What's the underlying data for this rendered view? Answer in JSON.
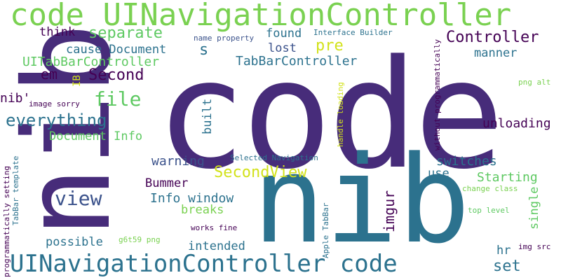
{
  "palette": {
    "purple": "#472c7a",
    "teal": "#2c728e",
    "green": "#7ad151",
    "yellow": "#d2e21b",
    "lightgreen": "#5ec962",
    "dark": "#440154",
    "mid": "#3b528b"
  },
  "words": {
    "w1": "code UINavigationController",
    "w2": "code",
    "w3": "nib",
    "w4": "UINavigationController code",
    "w5": "Controller",
    "w6": "separate",
    "w7": "Second",
    "w8": "file",
    "w9": "everything",
    "w10": "SecondView",
    "w11": "view",
    "w12": "imgur",
    "w13": "UITabBarController",
    "w14": "TabBarController",
    "w15": "cause Document",
    "w16": "Document Info",
    "w17": "unloading",
    "w18": "switches",
    "w19": "warning",
    "w20": "Info window",
    "w21": "Starting",
    "w22": "breaks",
    "w23": "intended",
    "w24": "possible",
    "w25": "think",
    "w26": "found",
    "w27": "lost",
    "w28": "pre",
    "w29": "manner",
    "w30": "em",
    "w31": "nib'",
    "w32": "set",
    "w33": "hr",
    "w34": "single",
    "w35": "use",
    "w36": "Bummer",
    "w37": "built",
    "w38": "s",
    "w39": "IB",
    "w40": "name property",
    "w41": "Interface Builder",
    "w42": "image sorry",
    "w43": "handle loading",
    "w44": "without programmatically",
    "w45": "png alt",
    "w46": "Selected Navigation",
    "w47": "programmatically setting",
    "w48": "TabBar template",
    "w49": "change class",
    "w50": "top level",
    "w51": "works fine",
    "w52": "g6t59 png",
    "w53": "Apple TabBar",
    "w54": "img src"
  }
}
